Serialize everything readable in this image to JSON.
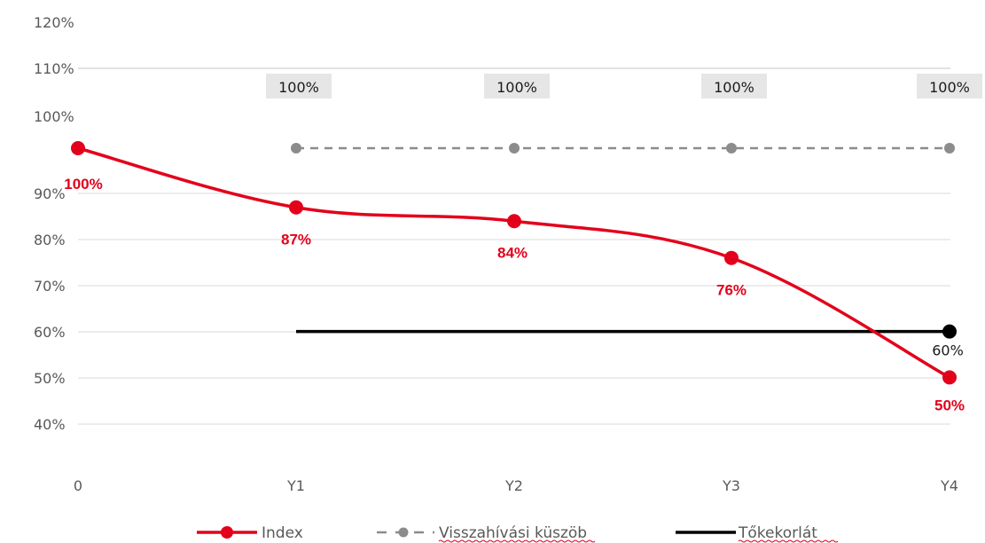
{
  "chart_data": {
    "type": "line",
    "categories": [
      "0",
      "Y1",
      "Y2",
      "Y3",
      "Y4"
    ],
    "y_tick_labels": [
      "40%",
      "50%",
      "60%",
      "70%",
      "80%",
      "90%",
      "100%",
      "110%",
      "120%"
    ],
    "grid": true,
    "legend_position": "bottom",
    "series": [
      {
        "name": "Index",
        "color": "#e3001b",
        "style": "solid-smooth-markers",
        "x": [
          "0",
          "Y1",
          "Y2",
          "Y3",
          "Y4"
        ],
        "values": [
          100,
          87,
          84,
          76,
          50
        ],
        "labels": [
          "100%",
          "87%",
          "84%",
          "76%",
          "50%"
        ]
      },
      {
        "name": "Visszahívási küszöb",
        "color": "#8c8c8c",
        "style": "dashed-markers",
        "x": [
          "Y1",
          "Y2",
          "Y3",
          "Y4"
        ],
        "values": [
          100,
          100,
          100,
          100
        ],
        "labels": [
          "100%",
          "100%",
          "100%",
          "100%"
        ]
      },
      {
        "name": "Tőkekorlát",
        "color": "#000000",
        "style": "solid",
        "x": [
          "Y1",
          "Y4"
        ],
        "values": [
          60,
          60
        ],
        "labels": [
          "60%"
        ]
      }
    ]
  }
}
